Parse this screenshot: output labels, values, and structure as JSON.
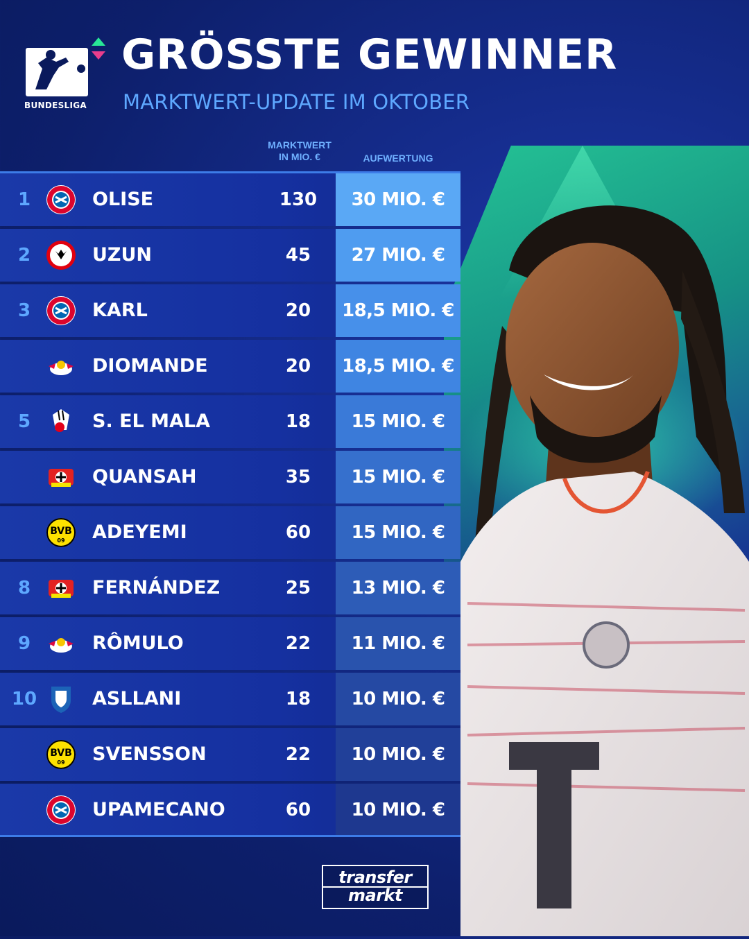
{
  "header": {
    "logo_text": "BUNDESLIGA",
    "title": "GRÖSSTE GEWINNER",
    "subtitle": "MARKTWERT-UPDATE IM OKTOBER"
  },
  "columns": {
    "market_value_line1": "MARKTWERT",
    "market_value_line2": "IN MIO. €",
    "gain": "AUFWERTUNG"
  },
  "rows": [
    {
      "rank": "1",
      "club_icon": "bayern-icon",
      "name": "OLISE",
      "market_value": "130",
      "gain": "30 MIO. €"
    },
    {
      "rank": "2",
      "club_icon": "eintracht-icon",
      "name": "UZUN",
      "market_value": "45",
      "gain": "27 MIO. €"
    },
    {
      "rank": "3",
      "club_icon": "bayern-icon",
      "name": "KARL",
      "market_value": "20",
      "gain": "18,5 MIO. €"
    },
    {
      "rank": "",
      "club_icon": "leipzig-icon",
      "name": "DIOMANDE",
      "market_value": "20",
      "gain": "18,5 MIO. €"
    },
    {
      "rank": "5",
      "club_icon": "koeln-icon",
      "name": "S. EL MALA",
      "market_value": "18",
      "gain": "15 MIO. €"
    },
    {
      "rank": "",
      "club_icon": "leverkusen-icon",
      "name": "QUANSAH",
      "market_value": "35",
      "gain": "15 MIO. €"
    },
    {
      "rank": "",
      "club_icon": "bvb-icon",
      "name": "ADEYEMI",
      "market_value": "60",
      "gain": "15 MIO. €"
    },
    {
      "rank": "8",
      "club_icon": "leverkusen-icon",
      "name": "FERNÁNDEZ",
      "market_value": "25",
      "gain": "13 MIO. €"
    },
    {
      "rank": "9",
      "club_icon": "leipzig-icon",
      "name": "RÔMULO",
      "market_value": "22",
      "gain": "11 MIO. €"
    },
    {
      "rank": "10",
      "club_icon": "hoffenheim-icon",
      "name": "ASLLANI",
      "market_value": "18",
      "gain": "10 MIO. €"
    },
    {
      "rank": "",
      "club_icon": "bvb-icon",
      "name": "SVENSSON",
      "market_value": "22",
      "gain": "10 MIO. €"
    },
    {
      "rank": "",
      "club_icon": "bayern-icon",
      "name": "UPAMECANO",
      "market_value": "60",
      "gain": "10 MIO. €"
    }
  ],
  "gain_colors": [
    "#5aa8f5",
    "#4f9cf0",
    "#4790ea",
    "#3f85e2",
    "#3a7ad8",
    "#3670cd",
    "#3166c2",
    "#2d5cb7",
    "#2953ad",
    "#2549a3",
    "#214099",
    "#1e388f"
  ],
  "footer": {
    "brand_line1": "transfer",
    "brand_line2": "markt"
  },
  "colors": {
    "accent_blue": "#5ea8ff",
    "accent_green": "#28e696",
    "row_bg": "#1a39a8"
  }
}
